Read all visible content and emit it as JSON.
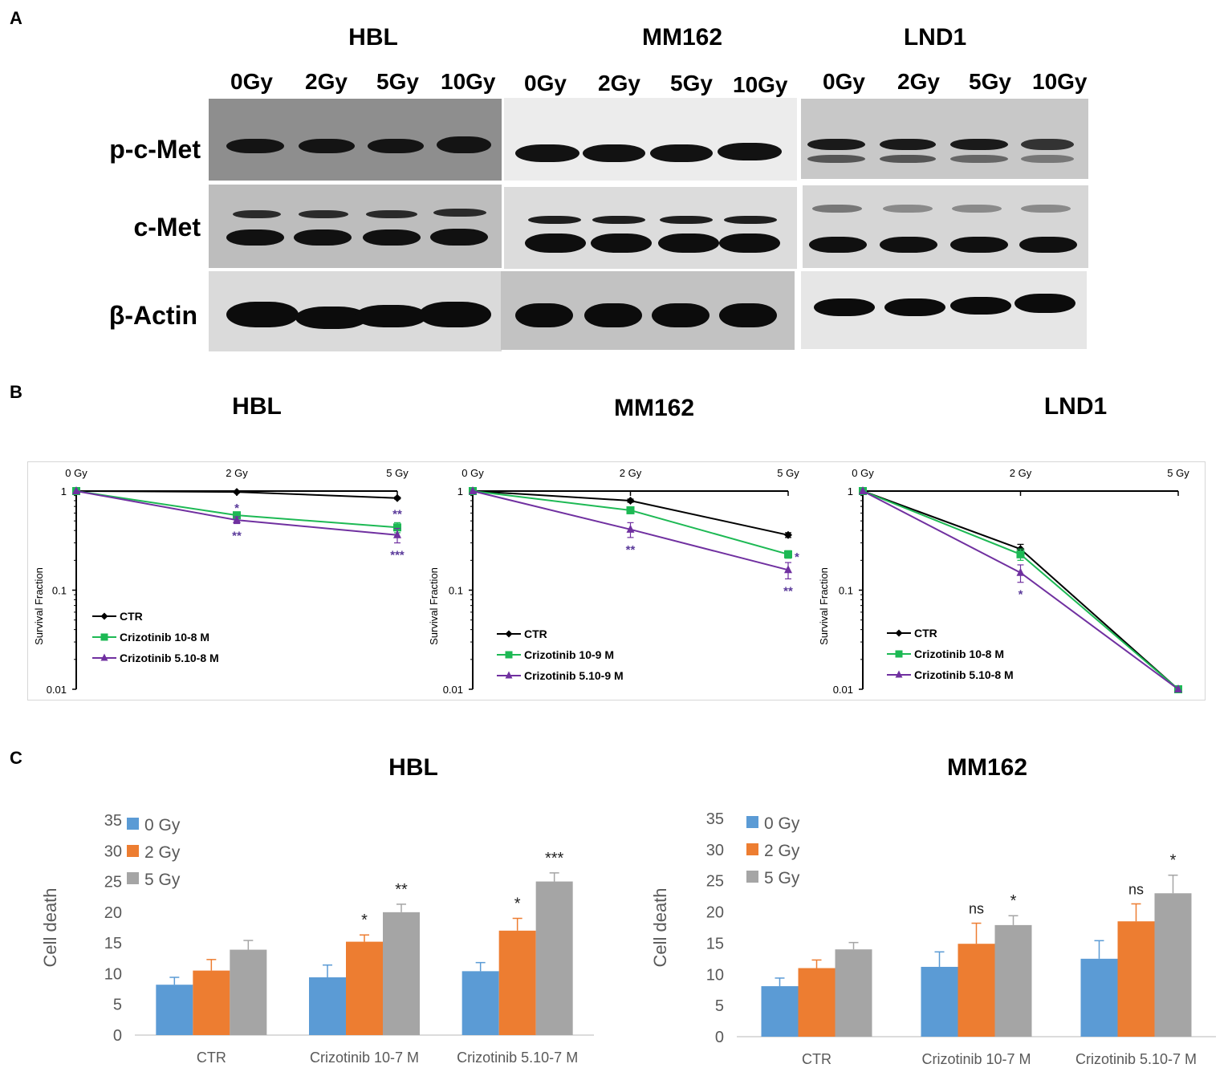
{
  "panel_letters": [
    "A",
    "B",
    "C"
  ],
  "western_blot": {
    "cell_lines": [
      "HBL",
      "MM162",
      "LND1"
    ],
    "doses": [
      "0Gy",
      "2Gy",
      "5Gy",
      "10Gy"
    ],
    "proteins": [
      "p-c-Met",
      "c-Met",
      "β-Actin"
    ]
  },
  "chart_data": [
    {
      "type": "line",
      "title": "HBL",
      "ylabel": "Survival Fraction",
      "x": [
        "0 Gy",
        "2 Gy",
        "5 Gy"
      ],
      "yscale": "log",
      "ylim": [
        0.01,
        1
      ],
      "yticks": [
        "1",
        "0.1",
        "0.01"
      ],
      "legend": "lower-left",
      "series": [
        {
          "name": "CTR",
          "values": [
            1,
            0.98,
            0.85
          ],
          "color": "#000000",
          "marker": "diamond",
          "err": [
            0,
            0.02,
            0.02
          ],
          "annotations": [
            "",
            "",
            ""
          ]
        },
        {
          "name": "Crizotinib 10-8 M",
          "values": [
            1,
            0.57,
            0.43
          ],
          "color": "#1db954",
          "marker": "square",
          "err": [
            0,
            0.04,
            0.05
          ],
          "annotations": [
            "",
            "*",
            "**"
          ]
        },
        {
          "name": "Crizotinib 5.10-8 M",
          "values": [
            1,
            0.51,
            0.36
          ],
          "color": "#7030a0",
          "marker": "triangle",
          "err": [
            0,
            0.04,
            0.06
          ],
          "annotations": [
            "",
            "**",
            "***"
          ]
        }
      ]
    },
    {
      "type": "line",
      "title": "MM162",
      "ylabel": "Survival Fraction",
      "x": [
        "0 Gy",
        "2 Gy",
        "5 Gy"
      ],
      "yscale": "log",
      "ylim": [
        0.01,
        1
      ],
      "yticks": [
        "1",
        "0.1",
        "0.01"
      ],
      "legend": "lower-left",
      "series": [
        {
          "name": "CTR",
          "values": [
            1,
            0.8,
            0.36
          ],
          "color": "#000000",
          "marker": "diamond",
          "err": [
            0,
            0.03,
            0.02
          ],
          "annotations": [
            "",
            "",
            ""
          ]
        },
        {
          "name": "Crizotinib 10-9 M",
          "values": [
            1,
            0.64,
            0.23
          ],
          "color": "#1db954",
          "marker": "square",
          "err": [
            0,
            0.04,
            0.02
          ],
          "annotations": [
            "",
            "",
            "*"
          ]
        },
        {
          "name": "Crizotinib 5.10-9 M",
          "values": [
            1,
            0.41,
            0.16
          ],
          "color": "#7030a0",
          "marker": "triangle",
          "err": [
            0,
            0.07,
            0.03
          ],
          "annotations": [
            "",
            "**",
            "**"
          ]
        }
      ]
    },
    {
      "type": "line",
      "title": "LND1",
      "ylabel": "Survival Fraction",
      "x": [
        "0 Gy",
        "2 Gy",
        "5 Gy"
      ],
      "yscale": "log",
      "ylim": [
        0.01,
        1
      ],
      "yticks": [
        "1",
        "0.1",
        "0.01"
      ],
      "legend": "lower-left",
      "series": [
        {
          "name": "CTR",
          "values": [
            1,
            0.26,
            0.01
          ],
          "color": "#000000",
          "marker": "diamond",
          "err": [
            0,
            0.03,
            0
          ],
          "annotations": [
            "",
            "",
            ""
          ]
        },
        {
          "name": "Crizotinib 10-8 M",
          "values": [
            1,
            0.23,
            0.01
          ],
          "color": "#1db954",
          "marker": "square",
          "err": [
            0,
            0.03,
            0
          ],
          "annotations": [
            "",
            "",
            ""
          ]
        },
        {
          "name": "Crizotinib 5.10-8 M",
          "values": [
            1,
            0.15,
            0.01
          ],
          "color": "#7030a0",
          "marker": "triangle",
          "err": [
            0,
            0.03,
            0
          ],
          "annotations": [
            "",
            "*",
            ""
          ]
        }
      ]
    },
    {
      "type": "bar",
      "title": "HBL",
      "ylabel": "Cell death",
      "categories": [
        "CTR",
        "Crizotinib 10-7 M",
        "Crizotinib 5.10-7 M"
      ],
      "ylim": [
        0,
        35
      ],
      "yticks": [
        0,
        5,
        10,
        15,
        20,
        25,
        30,
        35
      ],
      "legend": "top-left",
      "series": [
        {
          "name": "0 Gy",
          "color": "#5b9bd5",
          "values": [
            8.2,
            9.4,
            10.4
          ],
          "err": [
            1.2,
            2.0,
            1.4
          ],
          "annotations": [
            "",
            "",
            ""
          ]
        },
        {
          "name": "2 Gy",
          "color": "#ed7d31",
          "values": [
            10.5,
            15.2,
            17.0
          ],
          "err": [
            1.8,
            1.1,
            2.0
          ],
          "annotations": [
            "",
            "*",
            "*"
          ]
        },
        {
          "name": "5 Gy",
          "color": "#a5a5a5",
          "values": [
            13.9,
            20.0,
            25.0
          ],
          "err": [
            1.5,
            1.3,
            1.4
          ],
          "annotations": [
            "",
            "**",
            "***"
          ]
        }
      ]
    },
    {
      "type": "bar",
      "title": "MM162",
      "ylabel": "Cell death",
      "categories": [
        "CTR",
        "Crizotinib 10-7 M",
        "Crizotinib 5.10-7 M"
      ],
      "ylim": [
        0,
        35
      ],
      "yticks": [
        0,
        5,
        10,
        15,
        20,
        25,
        30,
        35
      ],
      "legend": "top-left",
      "series": [
        {
          "name": "0 Gy",
          "color": "#5b9bd5",
          "values": [
            8.1,
            11.2,
            12.5
          ],
          "err": [
            1.3,
            2.4,
            2.9
          ],
          "annotations": [
            "",
            "",
            ""
          ]
        },
        {
          "name": "2 Gy",
          "color": "#ed7d31",
          "values": [
            11.0,
            14.9,
            18.5
          ],
          "err": [
            1.3,
            3.3,
            2.8
          ],
          "annotations": [
            "",
            "ns",
            "ns"
          ]
        },
        {
          "name": "5 Gy",
          "color": "#a5a5a5",
          "values": [
            14.0,
            17.9,
            23.0
          ],
          "err": [
            1.1,
            1.5,
            2.9
          ],
          "annotations": [
            "",
            "*",
            "*"
          ]
        }
      ]
    }
  ]
}
